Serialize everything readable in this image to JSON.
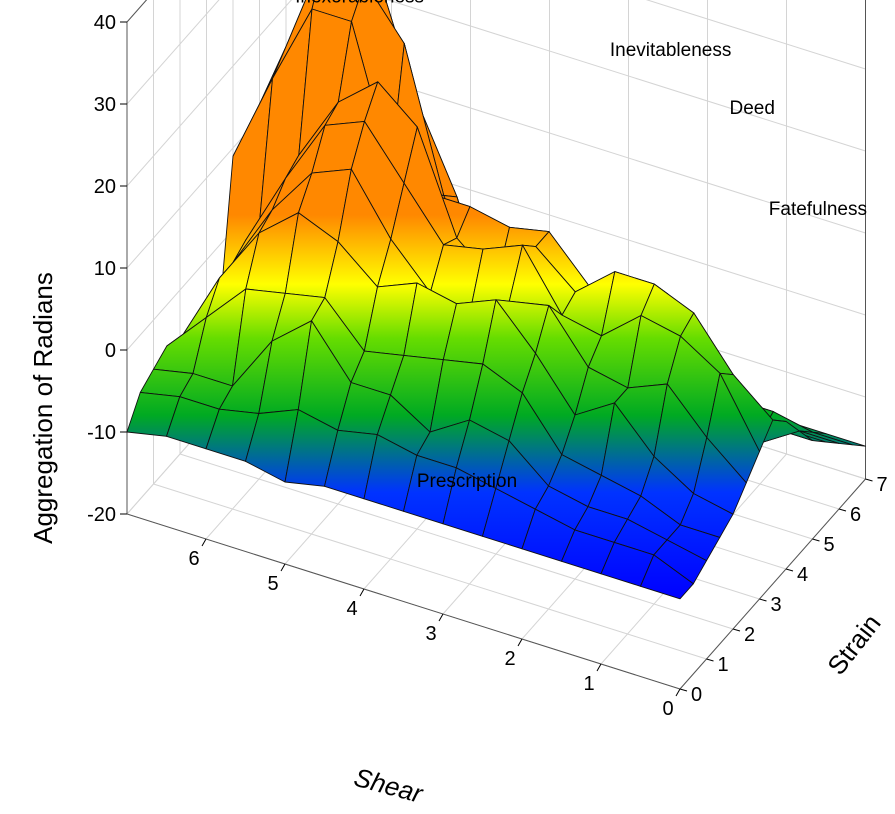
{
  "chart_data": {
    "type": "surface",
    "zlabel": "Aggregation of Radians",
    "xlabel": "Shear",
    "ylabel": "Strain",
    "xlim": [
      0,
      7
    ],
    "ylim": [
      0,
      7
    ],
    "zlim": [
      -20,
      40
    ],
    "x_ticks": [
      "0",
      "1",
      "2",
      "3",
      "4",
      "5",
      "6"
    ],
    "y_ticks": [
      "0",
      "1",
      "2",
      "3",
      "4",
      "5",
      "6",
      "7"
    ],
    "z_ticks": [
      "-20",
      "-10",
      "0",
      "10",
      "20",
      "30",
      "40"
    ],
    "colormap": [
      "#0000ff",
      "#00aa00",
      "#ffff00",
      "#ff8c00"
    ],
    "annotations": [
      {
        "label": "Inexorableness",
        "x": 5.8,
        "y": 5.2,
        "z": 27
      },
      {
        "label": "Inevitableness",
        "x": 2.4,
        "y": 6.8,
        "z": 25
      },
      {
        "label": "Deed",
        "x": 1.3,
        "y": 6.6,
        "z": 22
      },
      {
        "label": "Fatefulness",
        "x": 0.2,
        "y": 5.8,
        "z": 16
      },
      {
        "label": "Prescription",
        "x": 3.3,
        "y": 1.8,
        "z": -12
      }
    ],
    "grid": {
      "x": [
        0,
        0.5,
        1,
        1.5,
        2,
        2.5,
        3,
        3.5,
        4,
        4.5,
        5,
        5.5,
        6,
        6.5,
        7
      ],
      "y": [
        0,
        0.5,
        1,
        1.5,
        2,
        2.5,
        3,
        3.5,
        4,
        4.5,
        5,
        5.5,
        6,
        6.5,
        7
      ],
      "z": [
        [
          -9,
          -9,
          -9,
          -9,
          -9,
          -9,
          -9,
          -9,
          -9,
          -9,
          -10,
          -9,
          -9,
          -9,
          -10
        ],
        [
          -9,
          -7,
          -7,
          -7,
          -6,
          -5,
          -4,
          -4,
          -3,
          -4,
          -3,
          -5,
          -6,
          -6,
          -7
        ],
        [
          -8,
          -7,
          -6,
          -6,
          -5,
          -1,
          0,
          -3,
          0,
          0,
          6,
          2,
          -5,
          -5,
          -6
        ],
        [
          -7,
          -7,
          -5,
          -4,
          -3,
          3,
          5,
          4,
          3,
          2,
          7,
          6,
          5,
          0,
          -5
        ],
        [
          -6,
          -5,
          -2,
          3,
          0,
          6,
          11,
          9,
          10,
          8,
          12,
          14,
          10,
          3,
          -6
        ],
        [
          -4,
          0,
          5,
          3,
          4,
          10,
          9,
          6,
          7,
          12,
          19,
          17,
          11,
          3,
          -8
        ],
        [
          -2,
          6,
          9,
          10,
          6,
          7,
          14,
          12,
          11,
          17,
          23,
          21,
          13,
          4,
          -8
        ],
        [
          0,
          4,
          10,
          12,
          12,
          8,
          12,
          6,
          10,
          22,
          26,
          22,
          14,
          4,
          -8
        ],
        [
          -2,
          -3,
          2,
          9,
          7,
          7,
          12,
          11,
          12,
          12,
          14,
          30,
          30,
          20,
          9
        ],
        [
          -5,
          -8,
          -6,
          -5,
          -5,
          -5,
          -6,
          -8,
          0,
          10,
          27,
          33,
          35,
          22,
          10
        ],
        [
          -8,
          -8,
          -8,
          -8,
          -10,
          -10,
          -10,
          -11,
          -8,
          8,
          18,
          32,
          36,
          21,
          11
        ],
        [
          -10,
          -10,
          -12,
          -11,
          -11,
          -10,
          -12,
          -12,
          -10,
          1,
          9,
          20,
          20,
          18,
          7
        ],
        [
          -12,
          -12,
          -14,
          -13,
          -14,
          -12,
          -14,
          -15,
          -12,
          -6,
          0,
          5,
          8,
          4,
          -1
        ],
        [
          -14,
          -14,
          -13,
          -13,
          -14,
          -14,
          -16,
          -15,
          -14,
          -10,
          -6,
          -7,
          -2,
          -4,
          -8
        ],
        [
          -16,
          -16,
          -16,
          -16,
          -16,
          -16,
          -16,
          -16,
          -16,
          -14,
          -12,
          -10,
          -10,
          -12,
          -14
        ]
      ]
    }
  }
}
